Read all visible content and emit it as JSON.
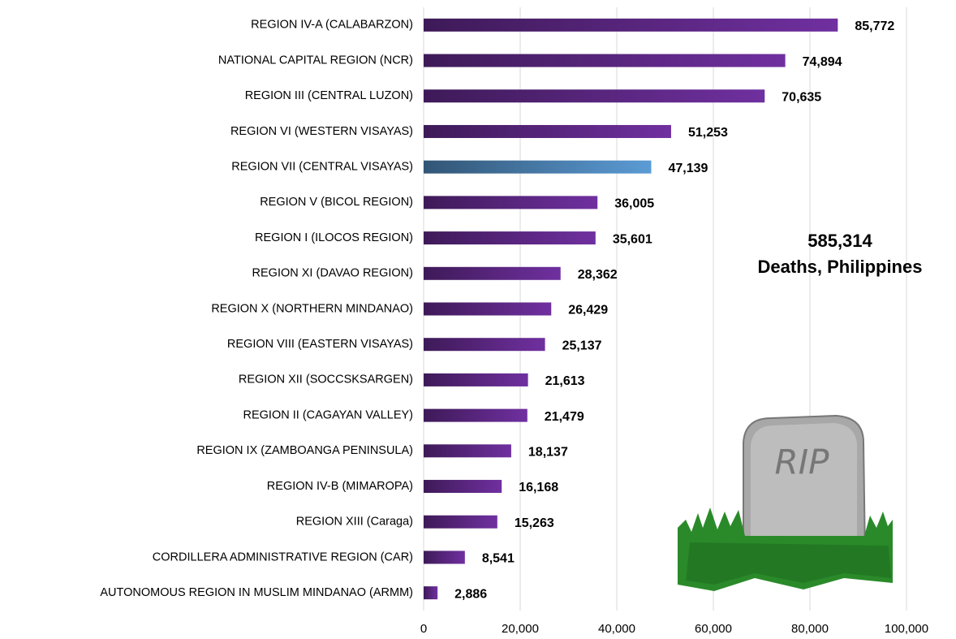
{
  "chart_data": {
    "type": "bar",
    "orientation": "horizontal",
    "categories": [
      "REGION IV-A (CALABARZON)",
      "NATIONAL CAPITAL REGION (NCR)",
      "REGION III (CENTRAL LUZON)",
      "REGION VI (WESTERN VISAYAS)",
      "REGION VII (CENTRAL VISAYAS)",
      "REGION V (BICOL REGION)",
      "REGION I (ILOCOS REGION)",
      "REGION XI (DAVAO REGION)",
      "REGION X (NORTHERN MINDANAO)",
      "REGION VIII (EASTERN VISAYAS)",
      "REGION XII (SOCCSKSARGEN)",
      "REGION II (CAGAYAN VALLEY)",
      "REGION IX (ZAMBOANGA PENINSULA)",
      "REGION IV-B (MIMAROPA)",
      "REGION XIII (Caraga)",
      "CORDILLERA ADMINISTRATIVE REGION (CAR)",
      "AUTONOMOUS REGION IN MUSLIM MINDANAO (ARMM)"
    ],
    "values": [
      85772,
      74894,
      70635,
      51253,
      47139,
      36005,
      35601,
      28362,
      26429,
      25137,
      21613,
      21479,
      18137,
      16168,
      15263,
      8541,
      2886
    ],
    "value_labels": [
      "85,772",
      "74,894",
      "70,635",
      "51,253",
      "47,139",
      "36,005",
      "35,601",
      "28,362",
      "26,429",
      "25,137",
      "21,613",
      "21,479",
      "18,137",
      "16,168",
      "15,263",
      "8,541",
      "2,886"
    ],
    "colors": [
      "#7030a0",
      "#7030a0",
      "#7030a0",
      "#7030a0",
      "#5b9bd5",
      "#7030a0",
      "#7030a0",
      "#7030a0",
      "#7030a0",
      "#7030a0",
      "#7030a0",
      "#7030a0",
      "#7030a0",
      "#7030a0",
      "#7030a0",
      "#7030a0",
      "#7030a0"
    ],
    "xlim": [
      0,
      100000
    ],
    "xticks": [
      0,
      {
        "value": 20000,
        "label": "20,000"
      },
      {
        "value": 40000,
        "label": "40,000"
      },
      {
        "value": 60000,
        "label": "60,000"
      },
      {
        "value": 80000,
        "label": "80,000"
      },
      {
        "value": 100000,
        "label": "100,000"
      }
    ],
    "grid": true,
    "annotations": [
      "585,314",
      "Deaths, Philippines"
    ],
    "tombstone_text": "RIP"
  }
}
